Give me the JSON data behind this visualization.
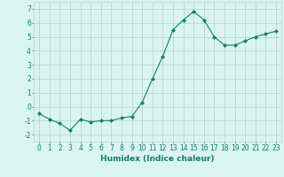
{
  "x": [
    0,
    1,
    2,
    3,
    4,
    5,
    6,
    7,
    8,
    9,
    10,
    11,
    12,
    13,
    14,
    15,
    16,
    17,
    18,
    19,
    20,
    21,
    22,
    23
  ],
  "y": [
    -0.5,
    -0.9,
    -1.2,
    -1.7,
    -0.9,
    -1.1,
    -1.0,
    -1.0,
    -0.8,
    -0.7,
    0.3,
    2.0,
    3.6,
    5.5,
    6.2,
    6.8,
    6.2,
    5.0,
    4.4,
    4.4,
    4.7,
    5.0,
    5.2,
    5.4
  ],
  "line_color": "#1a7a6a",
  "marker": "D",
  "marker_size": 2,
  "bg_color": "#d8f5f0",
  "grid_color": "#b8ceca",
  "xlabel": "Humidex (Indice chaleur)",
  "ylim": [
    -2.5,
    7.5
  ],
  "xlim": [
    -0.5,
    23.5
  ],
  "yticks": [
    -2,
    -1,
    0,
    1,
    2,
    3,
    4,
    5,
    6,
    7
  ],
  "xticks": [
    0,
    1,
    2,
    3,
    4,
    5,
    6,
    7,
    8,
    9,
    10,
    11,
    12,
    13,
    14,
    15,
    16,
    17,
    18,
    19,
    20,
    21,
    22,
    23
  ],
  "tick_color": "#1a7a6a",
  "label_fontsize": 6.5,
  "tick_fontsize": 5.5
}
